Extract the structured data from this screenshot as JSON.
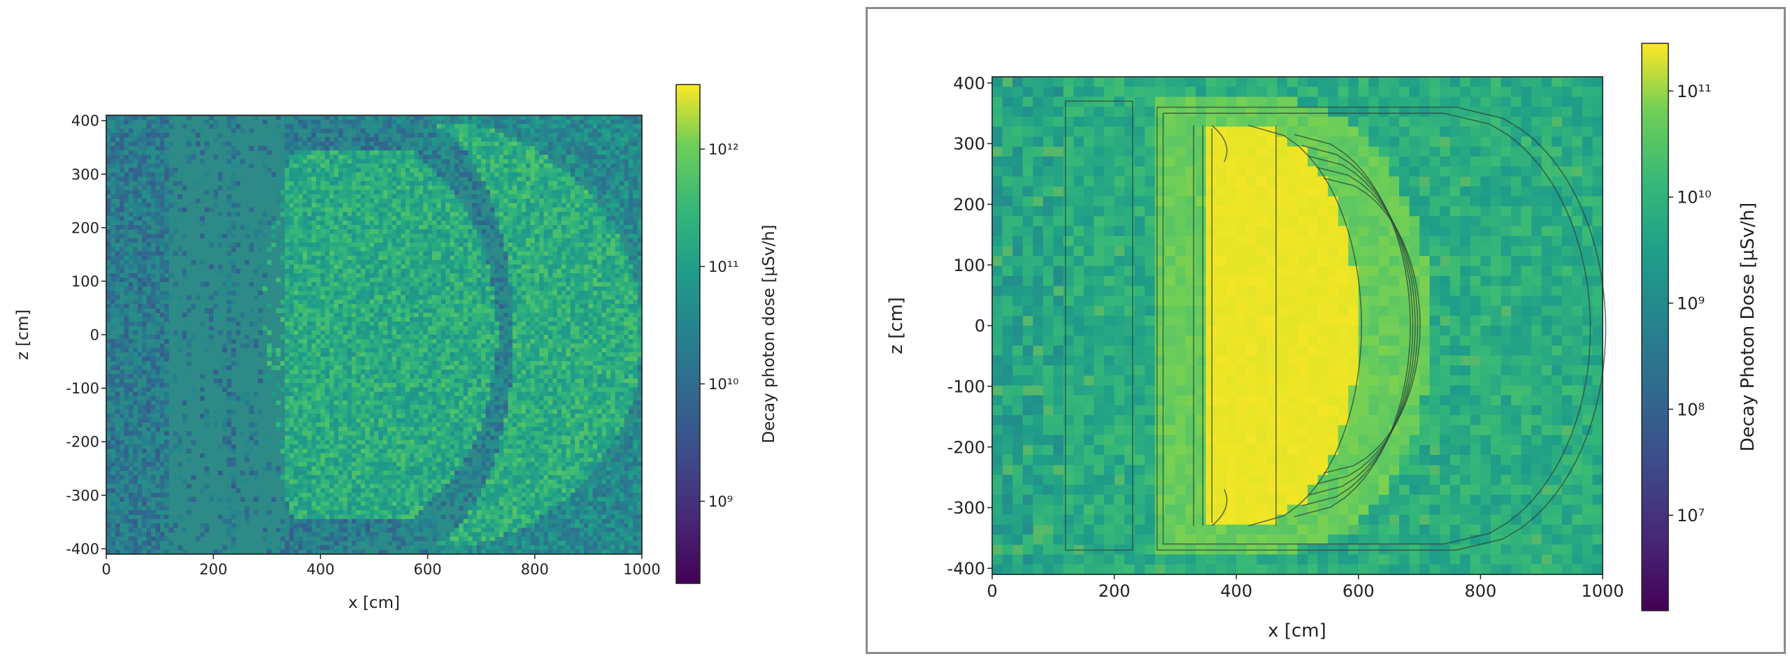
{
  "chart_data": [
    {
      "type": "heatmap",
      "xlabel": "x [cm]",
      "ylabel": "z [cm]",
      "xlim": [
        0,
        1000
      ],
      "ylim": [
        -410,
        410
      ],
      "xticks": [
        0,
        200,
        400,
        600,
        800,
        1000
      ],
      "yticks": [
        400,
        300,
        200,
        100,
        0,
        -100,
        -200,
        -300,
        -400
      ],
      "colorbar": {
        "label": "Decay photon dose [µSv/h]",
        "scale": "log",
        "range_exp": [
          8.3,
          12.55
        ],
        "tick_labels": [
          "10¹²",
          "10¹¹",
          "10¹⁰",
          "10⁹"
        ],
        "tick_exps": [
          12,
          11,
          10,
          9
        ]
      },
      "regions": [
        {
          "name": "background",
          "log10_dose": 10.0
        },
        {
          "name": "inner-lens",
          "log10_dose": 10.9
        },
        {
          "name": "outer-crescent",
          "log10_dose": 10.95
        },
        {
          "name": "sparse-band",
          "x_range": [
            120,
            330
          ],
          "log10_dose": null
        }
      ]
    },
    {
      "type": "heatmap",
      "xlabel": "x [cm]",
      "ylabel": "z [cm]",
      "xlim": [
        0,
        1000
      ],
      "ylim": [
        -410,
        410
      ],
      "xticks": [
        0,
        200,
        400,
        600,
        800,
        1000
      ],
      "yticks": [
        400,
        300,
        200,
        100,
        0,
        -100,
        -200,
        -300,
        -400
      ],
      "colorbar": {
        "label": "Decay Photon Dose [µSv/h]",
        "scale": "log",
        "range_exp": [
          6.1,
          11.45
        ],
        "tick_labels": [
          "10¹¹",
          "10¹⁰",
          "10⁹",
          "10⁸",
          "10⁷"
        ],
        "tick_exps": [
          11,
          10,
          9,
          8,
          7
        ]
      },
      "regions": [
        {
          "name": "background",
          "log10_dose": 9.4
        },
        {
          "name": "shielding-shell",
          "log10_dose": 10.2
        },
        {
          "name": "core",
          "log10_dose": 11.3
        }
      ]
    }
  ]
}
